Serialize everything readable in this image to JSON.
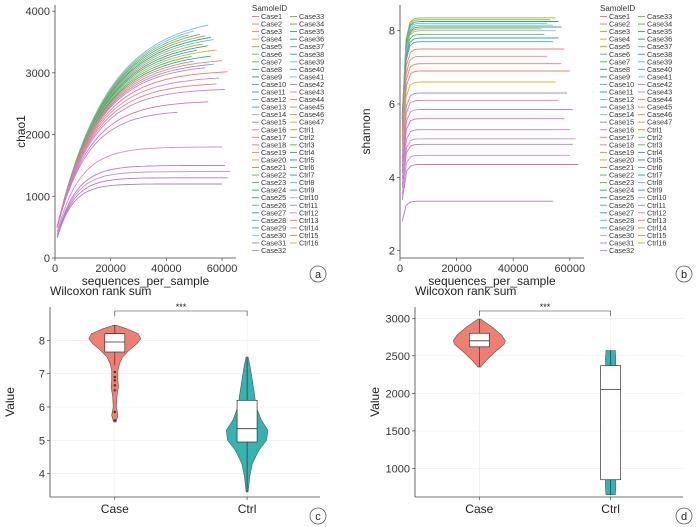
{
  "chart_data": [
    {
      "id": "a",
      "type": "line",
      "panel_label": "a",
      "xlabel": "sequences_per_sample",
      "ylabel": "chao1",
      "xlim": [
        0,
        65000
      ],
      "ylim": [
        0,
        4100
      ],
      "x_ticks": [
        "0",
        "20000",
        "40000",
        "60000"
      ],
      "y_ticks": [
        "0",
        "1000",
        "2000",
        "3000",
        "4000"
      ],
      "legend_title": "SamoleID",
      "legend_col1": [
        "Case1",
        "Case2",
        "Case3",
        "Case4",
        "Case5",
        "Case6",
        "Case7",
        "Case8",
        "Case9",
        "Case10",
        "Case11",
        "Case12",
        "Case13",
        "Case14",
        "Case15",
        "Case16",
        "Case17",
        "Case18",
        "Case19",
        "Case20",
        "Case21",
        "Case22",
        "Case23",
        "Case24",
        "Case25",
        "Case26",
        "Case27",
        "Case28",
        "Case29",
        "Case30",
        "Case31",
        "Case32"
      ],
      "legend_col2": [
        "Case33",
        "Case34",
        "Case35",
        "Case36",
        "Case37",
        "Case38",
        "Case39",
        "Case40",
        "Case41",
        "Case42",
        "Case43",
        "Case44",
        "Case45",
        "Case46",
        "Case47",
        "Ctrl1",
        "Ctrl2",
        "Ctrl3",
        "Ctrl4",
        "Ctrl5",
        "Ctrl6",
        "Ctrl7",
        "Ctrl8",
        "Ctrl9",
        "Ctrl10",
        "Ctrl11",
        "Ctrl12",
        "Ctrl13",
        "Ctrl14",
        "Ctrl15",
        "Ctrl16"
      ],
      "series": [
        {
          "plateau": 3950,
          "end": 55000,
          "rise": 0.06,
          "color": "#6fc7c7"
        },
        {
          "plateau": 3900,
          "end": 50000,
          "rise": 0.06,
          "color": "#8cb8e0"
        },
        {
          "plateau": 3850,
          "end": 48000,
          "rise": 0.055,
          "color": "#7fba4c"
        },
        {
          "plateau": 3800,
          "end": 52000,
          "rise": 0.055,
          "color": "#4fb7a6"
        },
        {
          "plateau": 3750,
          "end": 54000,
          "rise": 0.055,
          "color": "#b7a62a"
        },
        {
          "plateau": 3700,
          "end": 56000,
          "rise": 0.05,
          "color": "#2fa58a"
        },
        {
          "plateau": 3650,
          "end": 57000,
          "rise": 0.05,
          "color": "#58c4d8"
        },
        {
          "plateau": 3600,
          "end": 53000,
          "rise": 0.05,
          "color": "#d79a34"
        },
        {
          "plateau": 3550,
          "end": 55000,
          "rise": 0.05,
          "color": "#35ae6c"
        },
        {
          "plateau": 3500,
          "end": 51000,
          "rise": 0.05,
          "color": "#48a0d8"
        },
        {
          "plateau": 3450,
          "end": 58000,
          "rise": 0.045,
          "color": "#c9ba2f"
        },
        {
          "plateau": 3400,
          "end": 49000,
          "rise": 0.045,
          "color": "#63bb3c"
        },
        {
          "plateau": 3350,
          "end": 56000,
          "rise": 0.045,
          "color": "#28a9c2"
        },
        {
          "plateau": 3300,
          "end": 50000,
          "rise": 0.045,
          "color": "#f07f72"
        },
        {
          "plateau": 3250,
          "end": 60000,
          "rise": 0.045,
          "color": "#e58a7a"
        },
        {
          "plateau": 3200,
          "end": 57000,
          "rise": 0.042,
          "color": "#9b8fd8"
        },
        {
          "plateau": 3150,
          "end": 54000,
          "rise": 0.042,
          "color": "#e07ea0"
        },
        {
          "plateau": 3050,
          "end": 62000,
          "rise": 0.04,
          "color": "#f2796c"
        },
        {
          "plateau": 2950,
          "end": 59000,
          "rise": 0.04,
          "color": "#c78bd6"
        },
        {
          "plateau": 2850,
          "end": 58000,
          "rise": 0.04,
          "color": "#e5866e"
        },
        {
          "plateau": 2750,
          "end": 61000,
          "rise": 0.038,
          "color": "#cf7dc8"
        },
        {
          "plateau": 2550,
          "end": 55000,
          "rise": 0.035,
          "color": "#d46fc0"
        },
        {
          "plateau": 2400,
          "end": 44000,
          "rise": 0.035,
          "color": "#c77bd4"
        },
        {
          "plateau": 1800,
          "end": 60000,
          "rise": 0.03,
          "color": "#d58ad0"
        },
        {
          "plateau": 1500,
          "end": 61000,
          "rise": 0.03,
          "color": "#bd78cf"
        },
        {
          "plateau": 1400,
          "end": 63000,
          "rise": 0.03,
          "color": "#c88ac9"
        },
        {
          "plateau": 1300,
          "end": 62000,
          "rise": 0.028,
          "color": "#b474c6"
        },
        {
          "plateau": 1200,
          "end": 60000,
          "rise": 0.028,
          "color": "#a97cc8"
        }
      ]
    },
    {
      "id": "b",
      "type": "line",
      "panel_label": "b",
      "xlabel": "sequences_per_sample",
      "ylabel": "shannon",
      "xlim": [
        0,
        65000
      ],
      "ylim": [
        1.8,
        8.7
      ],
      "x_ticks": [
        "0",
        "20000",
        "40000",
        "60000"
      ],
      "y_ticks": [
        "2",
        "4",
        "6",
        "8"
      ],
      "legend_title": "SamoleID",
      "legend_col1": [
        "Case1",
        "Case2",
        "Case3",
        "Case4",
        "Case5",
        "Case6",
        "Case7",
        "Case8",
        "Case9",
        "Case10",
        "Case11",
        "Case12",
        "Case13",
        "Case14",
        "Case15",
        "Case16",
        "Case17",
        "Case18",
        "Case19",
        "Case20",
        "Case21",
        "Case22",
        "Case23",
        "Case24",
        "Case25",
        "Case26",
        "Case27",
        "Case28",
        "Case29",
        "Case30",
        "Case31",
        "Case32"
      ],
      "legend_col2": [
        "Case33",
        "Case34",
        "Case35",
        "Case36",
        "Case37",
        "Case38",
        "Case39",
        "Case40",
        "Case41",
        "Case42",
        "Case43",
        "Case44",
        "Case45",
        "Case46",
        "Case47",
        "Ctrl1",
        "Ctrl2",
        "Ctrl3",
        "Ctrl4",
        "Ctrl5",
        "Ctrl6",
        "Ctrl7",
        "Ctrl8",
        "Ctrl9",
        "Ctrl10",
        "Ctrl11",
        "Ctrl12",
        "Ctrl13",
        "Ctrl14",
        "Ctrl15",
        "Ctrl16"
      ],
      "series": [
        {
          "plateau": 8.35,
          "end": 55000,
          "color": "#b7a62a"
        },
        {
          "plateau": 8.3,
          "end": 53000,
          "color": "#7fba4c"
        },
        {
          "plateau": 8.25,
          "end": 56000,
          "color": "#2fa58a"
        },
        {
          "plateau": 8.2,
          "end": 52000,
          "color": "#6fc7c7"
        },
        {
          "plateau": 8.15,
          "end": 54000,
          "color": "#58c4d8"
        },
        {
          "plateau": 8.1,
          "end": 57000,
          "color": "#35ae6c"
        },
        {
          "plateau": 8.05,
          "end": 50000,
          "color": "#d79a34"
        },
        {
          "plateau": 8.0,
          "end": 55000,
          "color": "#8cb8e0"
        },
        {
          "plateau": 7.9,
          "end": 51000,
          "color": "#63bb3c"
        },
        {
          "plateau": 7.8,
          "end": 56000,
          "color": "#28a9c2"
        },
        {
          "plateau": 7.7,
          "end": 54000,
          "color": "#48a0d8"
        },
        {
          "plateau": 7.5,
          "end": 58000,
          "color": "#f07f72"
        },
        {
          "plateau": 7.3,
          "end": 52000,
          "color": "#e58a7a"
        },
        {
          "plateau": 7.1,
          "end": 57000,
          "color": "#f2796c"
        },
        {
          "plateau": 6.9,
          "end": 60000,
          "color": "#e5866e"
        },
        {
          "plateau": 6.6,
          "end": 55000,
          "color": "#c9ba2f"
        },
        {
          "plateau": 6.3,
          "end": 59000,
          "color": "#9b8fd8"
        },
        {
          "plateau": 6.1,
          "end": 56000,
          "color": "#e07ea0"
        },
        {
          "plateau": 5.85,
          "end": 61000,
          "color": "#cf7dc8"
        },
        {
          "plateau": 5.6,
          "end": 58000,
          "color": "#d46fc0"
        },
        {
          "plateau": 5.3,
          "end": 60000,
          "color": "#c77bd4"
        },
        {
          "plateau": 5.05,
          "end": 62000,
          "color": "#d58ad0"
        },
        {
          "plateau": 4.9,
          "end": 61000,
          "color": "#bd78cf"
        },
        {
          "plateau": 4.6,
          "end": 60000,
          "color": "#c88ac9"
        },
        {
          "plateau": 4.35,
          "end": 63000,
          "color": "#b474c6"
        },
        {
          "plateau": 3.35,
          "end": 54000,
          "color": "#a97cc8"
        }
      ]
    },
    {
      "id": "c",
      "type": "violin",
      "panel_label": "c",
      "title": "Wilcoxon rank sum",
      "ylabel": "Value",
      "categories": [
        "Case",
        "Ctrl"
      ],
      "ylim": [
        3.3,
        9.0
      ],
      "y_ticks": [
        "4",
        "5",
        "6",
        "7",
        "8"
      ],
      "significance": "***",
      "groups": [
        {
          "name": "Case",
          "color": "#f07f72",
          "min": 5.55,
          "max": 8.45,
          "q1": 7.65,
          "median": 7.95,
          "q3": 8.2,
          "whisker_low": 7.25,
          "whisker_high": 8.45,
          "outliers": [
            5.6,
            5.85,
            6.5,
            6.65,
            6.8,
            6.9,
            7.05
          ],
          "density": [
            [
              5.55,
              0.05
            ],
            [
              5.75,
              0.12
            ],
            [
              6.0,
              0.06
            ],
            [
              6.3,
              0.08
            ],
            [
              6.6,
              0.14
            ],
            [
              6.8,
              0.12
            ],
            [
              7.1,
              0.12
            ],
            [
              7.3,
              0.18
            ],
            [
              7.5,
              0.3
            ],
            [
              7.7,
              0.55
            ],
            [
              7.9,
              0.85
            ],
            [
              8.05,
              1.0
            ],
            [
              8.2,
              0.9
            ],
            [
              8.35,
              0.45
            ],
            [
              8.45,
              0.05
            ]
          ]
        },
        {
          "name": "Ctrl",
          "color": "#35b3b0",
          "min": 3.45,
          "max": 7.5,
          "q1": 4.95,
          "median": 5.35,
          "q3": 6.2,
          "whisker_low": 3.45,
          "whisker_high": 7.5,
          "outliers": [],
          "density": [
            [
              3.45,
              0.04
            ],
            [
              3.9,
              0.1
            ],
            [
              4.3,
              0.2
            ],
            [
              4.7,
              0.45
            ],
            [
              5.0,
              0.75
            ],
            [
              5.3,
              0.8
            ],
            [
              5.6,
              0.55
            ],
            [
              6.0,
              0.35
            ],
            [
              6.4,
              0.28
            ],
            [
              6.8,
              0.2
            ],
            [
              7.2,
              0.12
            ],
            [
              7.5,
              0.04
            ]
          ]
        }
      ]
    },
    {
      "id": "d",
      "type": "violin",
      "panel_label": "d",
      "title": "Wilcoxon rank sum",
      "ylabel": "Value",
      "categories": [
        "Case",
        "Ctrl"
      ],
      "ylim": [
        620,
        3150
      ],
      "y_ticks": [
        "1000",
        "1500",
        "2000",
        "2500",
        "3000"
      ],
      "significance": "***",
      "groups": [
        {
          "name": "Case",
          "color": "#f07f72",
          "min": 2350,
          "max": 2990,
          "q1": 2620,
          "median": 2700,
          "q3": 2800,
          "whisker_low": 2350,
          "whisker_high": 2990,
          "outliers": [],
          "density": [
            [
              2350,
              0.05
            ],
            [
              2450,
              0.3
            ],
            [
              2550,
              0.6
            ],
            [
              2650,
              0.95
            ],
            [
              2700,
              1.0
            ],
            [
              2780,
              0.85
            ],
            [
              2880,
              0.5
            ],
            [
              2990,
              0.05
            ]
          ]
        },
        {
          "name": "Ctrl",
          "color": "#35b3b0",
          "min": 650,
          "max": 2570,
          "q1": 850,
          "median": 2050,
          "q3": 2370,
          "whisker_low": 650,
          "whisker_high": 2570,
          "outliers": [],
          "density": [
            [
              650,
              0.18
            ],
            [
              750,
              0.2
            ],
            [
              850,
              0.2
            ],
            [
              1000,
              0.12
            ],
            [
              1300,
              0.05
            ],
            [
              1600,
              0.04
            ],
            [
              1900,
              0.05
            ],
            [
              2100,
              0.1
            ],
            [
              2300,
              0.18
            ],
            [
              2450,
              0.2
            ],
            [
              2570,
              0.18
            ]
          ]
        }
      ]
    }
  ]
}
